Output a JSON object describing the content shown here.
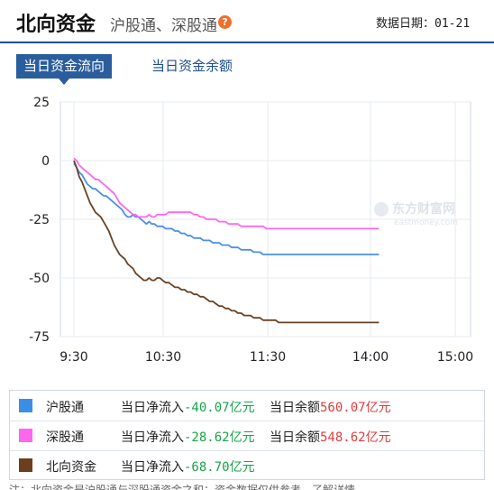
{
  "header": {
    "title": "北向资金",
    "subtitle": "沪股通、深股通",
    "help_icon": "help-icon",
    "date_label": "数据日期：",
    "date_value": "01-21"
  },
  "tabs": [
    {
      "label": "当日资金流向",
      "active": true
    },
    {
      "label": "当日资金余额",
      "active": false
    }
  ],
  "watermark": {
    "brand": "东方财富网",
    "domain": "eastmoney.com"
  },
  "chart_data": {
    "type": "line",
    "title": "",
    "xlabel": "",
    "ylabel": "",
    "x_ticks": [
      "9:30",
      "10:30",
      "11:30",
      "14:00",
      "15:00"
    ],
    "y_ticks": [
      25,
      0,
      -25,
      -50,
      -75
    ],
    "ylim": [
      -75,
      25
    ],
    "grid": true,
    "series": [
      {
        "name": "沪股通",
        "color": "#4a90e8",
        "x": [
          0,
          5,
          10,
          15,
          20,
          25,
          30,
          35,
          40,
          45,
          50,
          55,
          60,
          65,
          70,
          75,
          80,
          85,
          90,
          95,
          100,
          105,
          110,
          115,
          120,
          125,
          130,
          135,
          140,
          145,
          150,
          155,
          160,
          165,
          170,
          175,
          180,
          185,
          190,
          195,
          200,
          205,
          210,
          215,
          220,
          225,
          230,
          235,
          240,
          245,
          250,
          255,
          260,
          265,
          270,
          275,
          280,
          285,
          290,
          295,
          300,
          305,
          310,
          315,
          320,
          325,
          330,
          335,
          340,
          345,
          350,
          355,
          360,
          365,
          370,
          375,
          380,
          385,
          390,
          395,
          400,
          405,
          410,
          415,
          420,
          425,
          430,
          435,
          440,
          445,
          450,
          455,
          460,
          465,
          470,
          475,
          480,
          485,
          490,
          495,
          500,
          505,
          510,
          515
        ],
        "values": [
          -1,
          -3,
          -5,
          -6,
          -8,
          -10,
          -11,
          -12,
          -12,
          -13,
          -14,
          -15,
          -15,
          -16,
          -17,
          -18,
          -19,
          -20,
          -21,
          -23,
          -24,
          -24,
          -23,
          -24,
          -24,
          -25,
          -26,
          -27,
          -26,
          -27,
          -27,
          -28,
          -28,
          -28,
          -29,
          -29,
          -29,
          -30,
          -30,
          -31,
          -31,
          -32,
          -32,
          -33,
          -33,
          -33,
          -34,
          -34,
          -34,
          -35,
          -35,
          -35,
          -36,
          -36,
          -36,
          -37,
          -37,
          -37,
          -38,
          -38,
          -38,
          -38,
          -39,
          -39,
          -39,
          -40,
          -40,
          -40,
          -40,
          -40,
          -40,
          -40,
          -40,
          -40,
          -40,
          -40,
          -40,
          -40,
          -40,
          -40,
          -40,
          -40,
          -40,
          -40,
          -40,
          -40,
          -40,
          -40,
          -40,
          -40,
          -40,
          -40,
          -40,
          -40,
          -40,
          -40,
          -40,
          -40,
          -40,
          -40,
          -40,
          -40,
          -40,
          -40
        ]
      },
      {
        "name": "深股通",
        "color": "#ff66ee",
        "x": [
          0,
          5,
          10,
          15,
          20,
          25,
          30,
          35,
          40,
          45,
          50,
          55,
          60,
          65,
          70,
          75,
          80,
          85,
          90,
          95,
          100,
          105,
          110,
          115,
          120,
          125,
          130,
          135,
          140,
          145,
          150,
          155,
          160,
          165,
          170,
          175,
          180,
          185,
          190,
          195,
          200,
          205,
          210,
          215,
          220,
          225,
          230,
          235,
          240,
          245,
          250,
          255,
          260,
          265,
          270,
          275,
          280,
          285,
          290,
          295,
          300,
          305,
          310,
          315,
          320,
          325,
          330,
          335,
          340,
          345,
          350,
          355,
          360,
          365,
          370,
          375,
          380,
          385,
          390,
          395,
          400,
          405,
          410,
          415,
          420,
          425,
          430,
          435,
          440,
          445,
          450,
          455,
          460,
          465,
          470,
          475,
          480,
          485,
          490,
          495,
          500,
          505,
          510,
          515
        ],
        "values": [
          1,
          0,
          -2,
          -3,
          -4,
          -5,
          -6,
          -7,
          -8,
          -8,
          -9,
          -10,
          -11,
          -12,
          -13,
          -14,
          -16,
          -18,
          -19,
          -20,
          -21,
          -22,
          -23,
          -23,
          -24,
          -24,
          -24,
          -24,
          -23,
          -24,
          -24,
          -23,
          -23,
          -23,
          -23,
          -22,
          -22,
          -22,
          -22,
          -22,
          -22,
          -22,
          -22,
          -23,
          -23,
          -24,
          -24,
          -25,
          -25,
          -25,
          -25,
          -26,
          -26,
          -26,
          -27,
          -27,
          -27,
          -27,
          -28,
          -28,
          -28,
          -28,
          -28,
          -28,
          -28,
          -28,
          -29,
          -29,
          -29,
          -29,
          -29,
          -29,
          -29,
          -29,
          -29,
          -29,
          -29,
          -29,
          -29,
          -29,
          -29,
          -29,
          -29,
          -29,
          -29,
          -29,
          -29,
          -29,
          -29,
          -29,
          -29,
          -29,
          -29,
          -29,
          -29,
          -29,
          -29,
          -29,
          -29,
          -29,
          -29,
          -29,
          -29,
          -29
        ]
      },
      {
        "name": "北向资金",
        "color": "#6b4224",
        "x": [
          0,
          5,
          10,
          15,
          20,
          25,
          30,
          35,
          40,
          45,
          50,
          55,
          60,
          65,
          70,
          75,
          80,
          85,
          90,
          95,
          100,
          105,
          110,
          115,
          120,
          125,
          130,
          135,
          140,
          145,
          150,
          155,
          160,
          165,
          170,
          175,
          180,
          185,
          190,
          195,
          200,
          205,
          210,
          215,
          220,
          225,
          230,
          235,
          240,
          245,
          250,
          255,
          260,
          265,
          270,
          275,
          280,
          285,
          290,
          295,
          300,
          305,
          310,
          315,
          320,
          325,
          330,
          335,
          340,
          345,
          350,
          355,
          360,
          365,
          370,
          375,
          380,
          385,
          390,
          395,
          400,
          405,
          410,
          415,
          420,
          425,
          430,
          435,
          440,
          445,
          450,
          455,
          460,
          465,
          470,
          475,
          480,
          485,
          490,
          495,
          500,
          505,
          510,
          515
        ],
        "values": [
          0,
          -3,
          -7,
          -9,
          -12,
          -15,
          -18,
          -20,
          -22,
          -23,
          -24,
          -26,
          -28,
          -30,
          -33,
          -36,
          -38,
          -40,
          -41,
          -42,
          -44,
          -45,
          -46,
          -48,
          -49,
          -50,
          -51,
          -51,
          -50,
          -51,
          -51,
          -50,
          -50,
          -51,
          -52,
          -52,
          -53,
          -54,
          -54,
          -55,
          -55,
          -56,
          -56,
          -57,
          -57,
          -58,
          -58,
          -59,
          -60,
          -60,
          -61,
          -62,
          -62,
          -63,
          -63,
          -64,
          -64,
          -65,
          -65,
          -66,
          -66,
          -66,
          -67,
          -67,
          -67,
          -68,
          -68,
          -68,
          -68,
          -68,
          -69,
          -69,
          -69,
          -69,
          -69,
          -69,
          -69,
          -69,
          -69,
          -69,
          -69,
          -69,
          -69,
          -69,
          -69,
          -69,
          -69,
          -69,
          -69,
          -69,
          -69,
          -69,
          -69,
          -69,
          -69,
          -69,
          -69,
          -69,
          -69,
          -69,
          -69,
          -69,
          -69,
          -69
        ]
      }
    ]
  },
  "legend": [
    {
      "name": "沪股通",
      "color": "#3a8ee6",
      "net_label": "当日净流入",
      "net_value": "-40.07",
      "net_unit": "亿元",
      "bal_label": "当日余额",
      "bal_value": "560.07",
      "bal_unit": "亿元"
    },
    {
      "name": "深股通",
      "color": "#ff66ee",
      "net_label": "当日净流入",
      "net_value": "-28.62",
      "net_unit": "亿元",
      "bal_label": "当日余额",
      "bal_value": "548.62",
      "bal_unit": "亿元"
    },
    {
      "name": "北向资金",
      "color": "#6b3f1e",
      "net_label": "当日净流入",
      "net_value": "-68.70",
      "net_unit": "亿元",
      "bal_label": "",
      "bal_value": "",
      "bal_unit": ""
    }
  ],
  "footer": {
    "text": "注：北向资金是沪股通与深股通资金之和；资金数据仅供参考，了解详情"
  }
}
